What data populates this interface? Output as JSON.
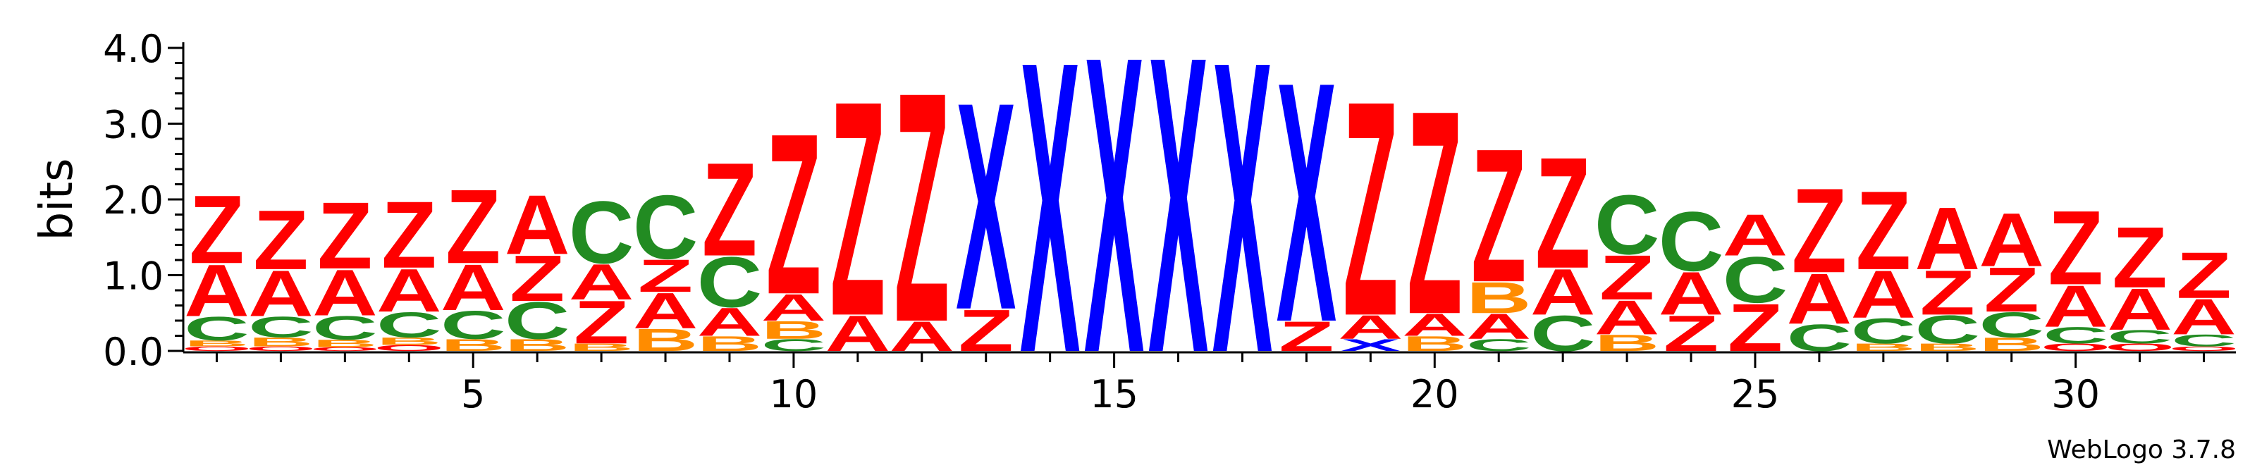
{
  "chart_data": {
    "type": "sequence-logo",
    "ylabel": "bits",
    "ylim": [
      0,
      4.0
    ],
    "y_ticks": [
      0.0,
      1.0,
      2.0,
      3.0,
      4.0
    ],
    "y_tick_labels": [
      "0.0",
      "1.0",
      "2.0",
      "3.0",
      "4.0"
    ],
    "x_ticks": [
      5,
      10,
      15,
      20,
      25,
      30
    ],
    "x_tick_labels": [
      "5",
      "10",
      "15",
      "20",
      "25",
      "30"
    ],
    "xlim": [
      0.5,
      32.5
    ],
    "colors": {
      "Z": "#ff0000",
      "A": "#ff0000",
      "X": "#0000ff",
      "C": "#228b22",
      "B": "#ff8c00",
      "O": "#ff0000"
    },
    "positions": [
      {
        "pos": 1,
        "letters": [
          [
            "O",
            0.06
          ],
          [
            "B",
            0.08
          ],
          [
            "C",
            0.32
          ],
          [
            "A",
            0.7
          ],
          [
            "Z",
            0.92
          ]
        ]
      },
      {
        "pos": 2,
        "letters": [
          [
            "O",
            0.06
          ],
          [
            "B",
            0.12
          ],
          [
            "C",
            0.28
          ],
          [
            "A",
            0.62
          ],
          [
            "Z",
            0.8
          ]
        ]
      },
      {
        "pos": 3,
        "letters": [
          [
            "O",
            0.05
          ],
          [
            "B",
            0.1
          ],
          [
            "C",
            0.32
          ],
          [
            "A",
            0.62
          ],
          [
            "Z",
            0.9
          ]
        ]
      },
      {
        "pos": 4,
        "letters": [
          [
            "O",
            0.08
          ],
          [
            "B",
            0.1
          ],
          [
            "C",
            0.34
          ],
          [
            "A",
            0.58
          ],
          [
            "Z",
            0.9
          ]
        ]
      },
      {
        "pos": 5,
        "letters": [
          [
            "B",
            0.16
          ],
          [
            "C",
            0.38
          ],
          [
            "A",
            0.62
          ],
          [
            "Z",
            1.0
          ]
        ]
      },
      {
        "pos": 6,
        "letters": [
          [
            "B",
            0.16
          ],
          [
            "C",
            0.5
          ],
          [
            "Z",
            0.62
          ],
          [
            "A",
            0.8
          ]
        ]
      },
      {
        "pos": 7,
        "letters": [
          [
            "B",
            0.1
          ],
          [
            "Z",
            0.58
          ],
          [
            "A",
            0.48
          ],
          [
            "C",
            0.84
          ]
        ]
      },
      {
        "pos": 8,
        "letters": [
          [
            "B",
            0.3
          ],
          [
            "A",
            0.48
          ],
          [
            "Z",
            0.44
          ],
          [
            "C",
            0.86
          ]
        ]
      },
      {
        "pos": 9,
        "letters": [
          [
            "B",
            0.2
          ],
          [
            "A",
            0.38
          ],
          [
            "C",
            0.68
          ],
          [
            "Z",
            1.26
          ]
        ]
      },
      {
        "pos": 10,
        "letters": [
          [
            "C",
            0.16
          ],
          [
            "B",
            0.24
          ],
          [
            "A",
            0.36
          ],
          [
            "Z",
            2.17
          ]
        ]
      },
      {
        "pos": 11,
        "letters": [
          [
            "A",
            0.48
          ],
          [
            "Z",
            2.9
          ]
        ]
      },
      {
        "pos": 12,
        "letters": [
          [
            "A",
            0.4
          ],
          [
            "Z",
            3.1
          ]
        ]
      },
      {
        "pos": 13,
        "letters": [
          [
            "Z",
            0.56
          ],
          [
            "X",
            2.8
          ]
        ]
      },
      {
        "pos": 14,
        "letters": [
          [
            "X",
            3.93
          ]
        ]
      },
      {
        "pos": 15,
        "letters": [
          [
            "X",
            4.0
          ]
        ]
      },
      {
        "pos": 16,
        "letters": [
          [
            "X",
            4.0
          ]
        ]
      },
      {
        "pos": 17,
        "letters": [
          [
            "X",
            3.93
          ]
        ]
      },
      {
        "pos": 18,
        "letters": [
          [
            "Z",
            0.4
          ],
          [
            "X",
            3.24
          ]
        ]
      },
      {
        "pos": 19,
        "letters": [
          [
            "X",
            0.16
          ],
          [
            "A",
            0.32
          ],
          [
            "Z",
            2.9
          ]
        ]
      },
      {
        "pos": 20,
        "letters": [
          [
            "B",
            0.2
          ],
          [
            "A",
            0.3
          ],
          [
            "Z",
            2.75
          ]
        ]
      },
      {
        "pos": 21,
        "letters": [
          [
            "C",
            0.16
          ],
          [
            "A",
            0.34
          ],
          [
            "B",
            0.42
          ],
          [
            "Z",
            1.8
          ]
        ]
      },
      {
        "pos": 22,
        "letters": [
          [
            "C",
            0.48
          ],
          [
            "A",
            0.62
          ],
          [
            "Z",
            1.5
          ]
        ]
      },
      {
        "pos": 23,
        "letters": [
          [
            "B",
            0.22
          ],
          [
            "A",
            0.46
          ],
          [
            "Z",
            0.6
          ],
          [
            "C",
            0.8
          ]
        ]
      },
      {
        "pos": 24,
        "letters": [
          [
            "Z",
            0.48
          ],
          [
            "A",
            0.58
          ],
          [
            "C",
            0.8
          ]
        ]
      },
      {
        "pos": 25,
        "letters": [
          [
            "Z",
            0.64
          ],
          [
            "C",
            0.62
          ],
          [
            "A",
            0.56
          ]
        ]
      },
      {
        "pos": 26,
        "letters": [
          [
            "C",
            0.36
          ],
          [
            "A",
            0.68
          ],
          [
            "Z",
            1.14
          ]
        ]
      },
      {
        "pos": 27,
        "letters": [
          [
            "B",
            0.1
          ],
          [
            "C",
            0.34
          ],
          [
            "A",
            0.64
          ],
          [
            "Z",
            1.06
          ]
        ]
      },
      {
        "pos": 28,
        "letters": [
          [
            "B",
            0.1
          ],
          [
            "C",
            0.38
          ],
          [
            "Z",
            0.6
          ],
          [
            "A",
            0.84
          ]
        ]
      },
      {
        "pos": 29,
        "letters": [
          [
            "B",
            0.18
          ],
          [
            "C",
            0.34
          ],
          [
            "Z",
            0.6
          ],
          [
            "A",
            0.72
          ]
        ]
      },
      {
        "pos": 30,
        "letters": [
          [
            "O",
            0.1
          ],
          [
            "C",
            0.22
          ],
          [
            "A",
            0.56
          ],
          [
            "Z",
            1.0
          ]
        ]
      },
      {
        "pos": 31,
        "letters": [
          [
            "O",
            0.1
          ],
          [
            "C",
            0.18
          ],
          [
            "A",
            0.56
          ],
          [
            "Z",
            0.82
          ]
        ]
      },
      {
        "pos": 32,
        "letters": [
          [
            "O",
            0.06
          ],
          [
            "C",
            0.16
          ],
          [
            "A",
            0.48
          ],
          [
            "Z",
            0.62
          ]
        ]
      }
    ]
  },
  "footer": {
    "credit": "WebLogo 3.7.8"
  }
}
